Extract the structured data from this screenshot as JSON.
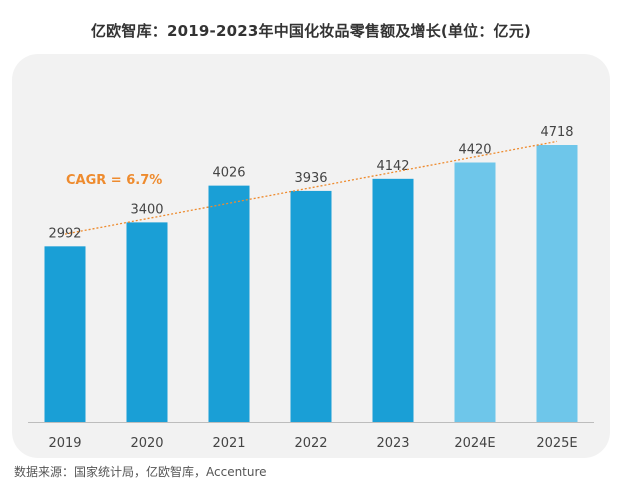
{
  "colors": {
    "actual_bar": "#1a9fd6",
    "estimate_bar": "#6ec6ea",
    "trend_line": "#ee8b2e",
    "cagr_text": "#ee8b2e",
    "label_text": "#444444",
    "axis": "#bdbdbd"
  },
  "chart_data": {
    "type": "bar",
    "title": "亿欧智库：2019-2023年中国化妆品零售额及增长(单位：亿元)",
    "categories": [
      "2019",
      "2020",
      "2021",
      "2022",
      "2023",
      "2024E",
      "2025E"
    ],
    "values": [
      2992,
      3400,
      4026,
      3936,
      4142,
      4420,
      4718
    ],
    "estimated": [
      false,
      false,
      false,
      false,
      false,
      true,
      true
    ],
    "value_labels": [
      "2992",
      "3400",
      "4026",
      "3936",
      "4142",
      "4420",
      "4718"
    ],
    "ylim": [
      0,
      4718
    ],
    "grid": false,
    "xlabel": "",
    "ylabel": "",
    "trend": {
      "label": "CAGR = 6.7%",
      "style": "dotted",
      "start_value": 3200,
      "end_value": 4780
    }
  },
  "source": "数据来源：国家统计局，亿欧智库，Accenture"
}
